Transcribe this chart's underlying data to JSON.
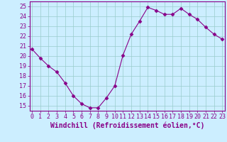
{
  "x": [
    0,
    1,
    2,
    3,
    4,
    5,
    6,
    7,
    8,
    9,
    10,
    11,
    12,
    13,
    14,
    15,
    16,
    17,
    18,
    19,
    20,
    21,
    22,
    23
  ],
  "y": [
    20.7,
    19.8,
    19.0,
    18.4,
    17.3,
    16.0,
    15.2,
    14.8,
    14.8,
    15.8,
    17.0,
    20.1,
    22.2,
    23.5,
    24.9,
    24.6,
    24.2,
    24.2,
    24.8,
    24.2,
    23.7,
    22.9,
    22.2,
    21.7
  ],
  "line_color": "#880088",
  "marker": "D",
  "marker_size": 2.5,
  "bg_color": "#cceeff",
  "grid_color": "#99cccc",
  "xlabel": "Windchill (Refroidissement éolien,°C)",
  "yticks": [
    15,
    16,
    17,
    18,
    19,
    20,
    21,
    22,
    23,
    24,
    25
  ],
  "xticks": [
    0,
    1,
    2,
    3,
    4,
    5,
    6,
    7,
    8,
    9,
    10,
    11,
    12,
    13,
    14,
    15,
    16,
    17,
    18,
    19,
    20,
    21,
    22,
    23
  ],
  "ylim": [
    14.5,
    25.5
  ],
  "xlim": [
    -0.3,
    23.3
  ],
  "xlabel_fontsize": 7,
  "tick_fontsize": 6,
  "axis_label_color": "#880088",
  "tick_color": "#880088",
  "spine_color": "#880088"
}
